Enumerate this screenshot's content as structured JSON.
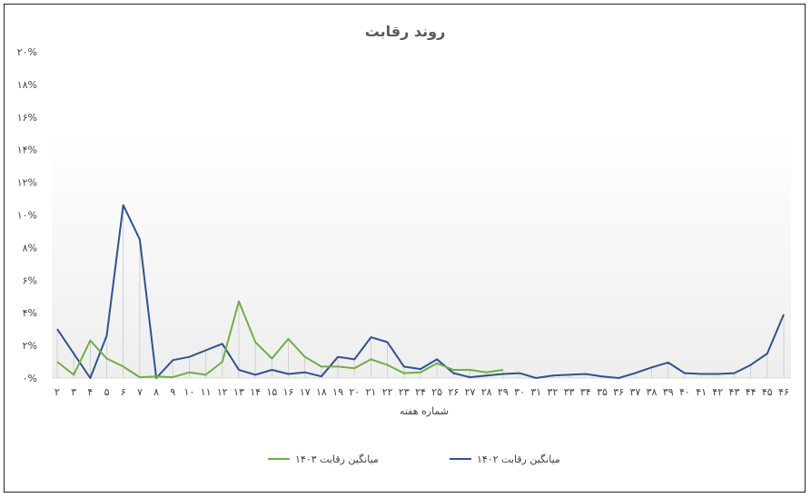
{
  "chart_data": {
    "type": "line",
    "title": "روند رقابت",
    "xlabel": "شماره هفته",
    "ylabel": "",
    "ylim": [
      0,
      20
    ],
    "y_tick_labels": [
      "۰%",
      "۲%",
      "۴%",
      "۶%",
      "۸%",
      "۱۰%",
      "۱۲%",
      "۱۴%",
      "۱۶%",
      "۱۸%",
      "۲۰%"
    ],
    "categories": [
      "۲",
      "۳",
      "۴",
      "۵",
      "۶",
      "۷",
      "۸",
      "۹",
      "۱۰",
      "۱۱",
      "۱۲",
      "۱۳",
      "۱۴",
      "۱۵",
      "۱۶",
      "۱۷",
      "۱۸",
      "۱۹",
      "۲۰",
      "۲۱",
      "۲۲",
      "۲۳",
      "۲۴",
      "۲۵",
      "۲۶",
      "۲۷",
      "۲۸",
      "۲۹",
      "۳۰",
      "۳۱",
      "۳۲",
      "۳۳",
      "۳۴",
      "۳۵",
      "۳۶",
      "۳۷",
      "۳۸",
      "۳۹",
      "۴۰",
      "۴۱",
      "۴۲",
      "۴۳",
      "۴۴",
      "۴۵",
      "۴۶"
    ],
    "grid": false,
    "legend_position": "bottom",
    "series": [
      {
        "name": "میانگین رقابت ۱۴۰۲",
        "color": "#2F528F",
        "values": [
          3.0,
          1.5,
          0.0,
          2.6,
          10.6,
          8.5,
          0.0,
          1.1,
          1.3,
          1.7,
          2.1,
          0.5,
          0.2,
          0.5,
          0.25,
          0.35,
          0.1,
          1.3,
          1.15,
          2.5,
          2.2,
          0.7,
          0.55,
          1.15,
          0.3,
          0.05,
          0.15,
          0.25,
          0.3,
          0.0,
          0.15,
          0.2,
          0.25,
          0.1,
          0.0,
          0.3,
          0.65,
          0.95,
          0.3,
          0.25,
          0.25,
          0.3,
          0.8,
          1.5,
          3.9
        ]
      },
      {
        "name": "میانگین رقابت ۱۴۰۳",
        "color": "#70AD47",
        "values": [
          1.0,
          0.2,
          2.3,
          1.2,
          0.7,
          0.05,
          0.1,
          0.05,
          0.35,
          0.2,
          1.0,
          4.7,
          2.2,
          1.2,
          2.4,
          1.3,
          0.7,
          0.7,
          0.6,
          1.15,
          0.8,
          0.3,
          0.35,
          0.9,
          0.5,
          0.5,
          0.35,
          0.5,
          null,
          null,
          null,
          null,
          null,
          null,
          null,
          null,
          null,
          null,
          null,
          null,
          null,
          null,
          null,
          null,
          null
        ]
      }
    ]
  }
}
